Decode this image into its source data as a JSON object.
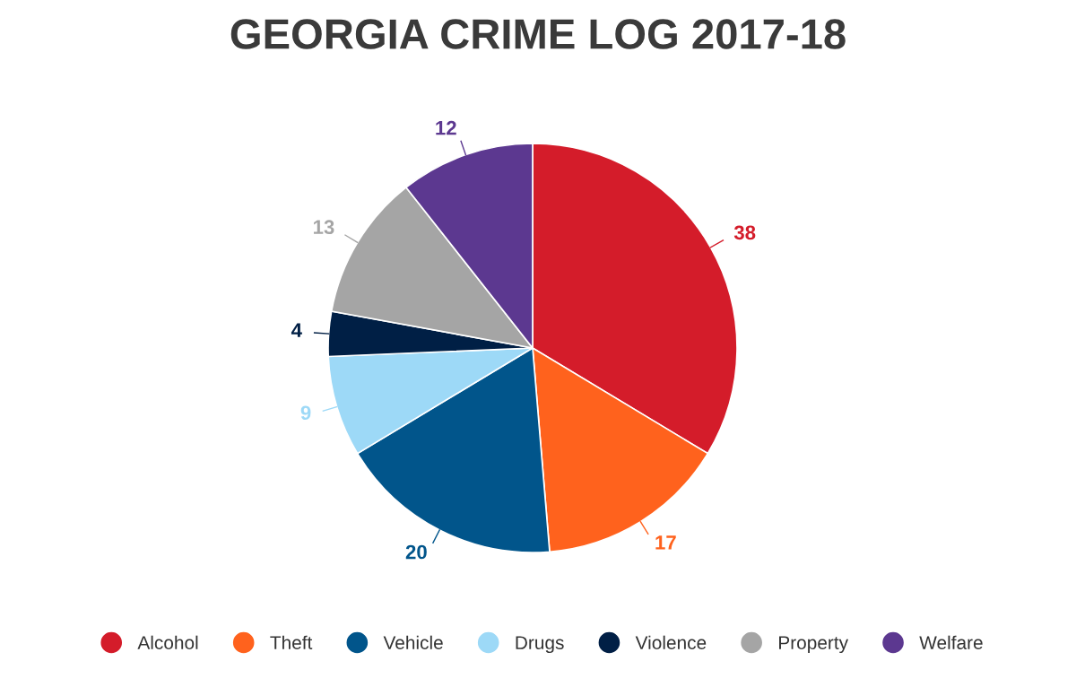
{
  "chart_data": {
    "type": "pie",
    "title": "GEORGIA CRIME LOG 2017-18",
    "categories": [
      "Alcohol",
      "Theft",
      "Vehicle",
      "Drugs",
      "Violence",
      "Property",
      "Welfare"
    ],
    "values": [
      38,
      17,
      20,
      9,
      4,
      13,
      12
    ],
    "colors": [
      "#d41c2a",
      "#ff621d",
      "#01558b",
      "#9dd9f7",
      "#001f45",
      "#a5a5a5",
      "#5c3890"
    ],
    "data_labels": true,
    "legend": "bottom"
  }
}
